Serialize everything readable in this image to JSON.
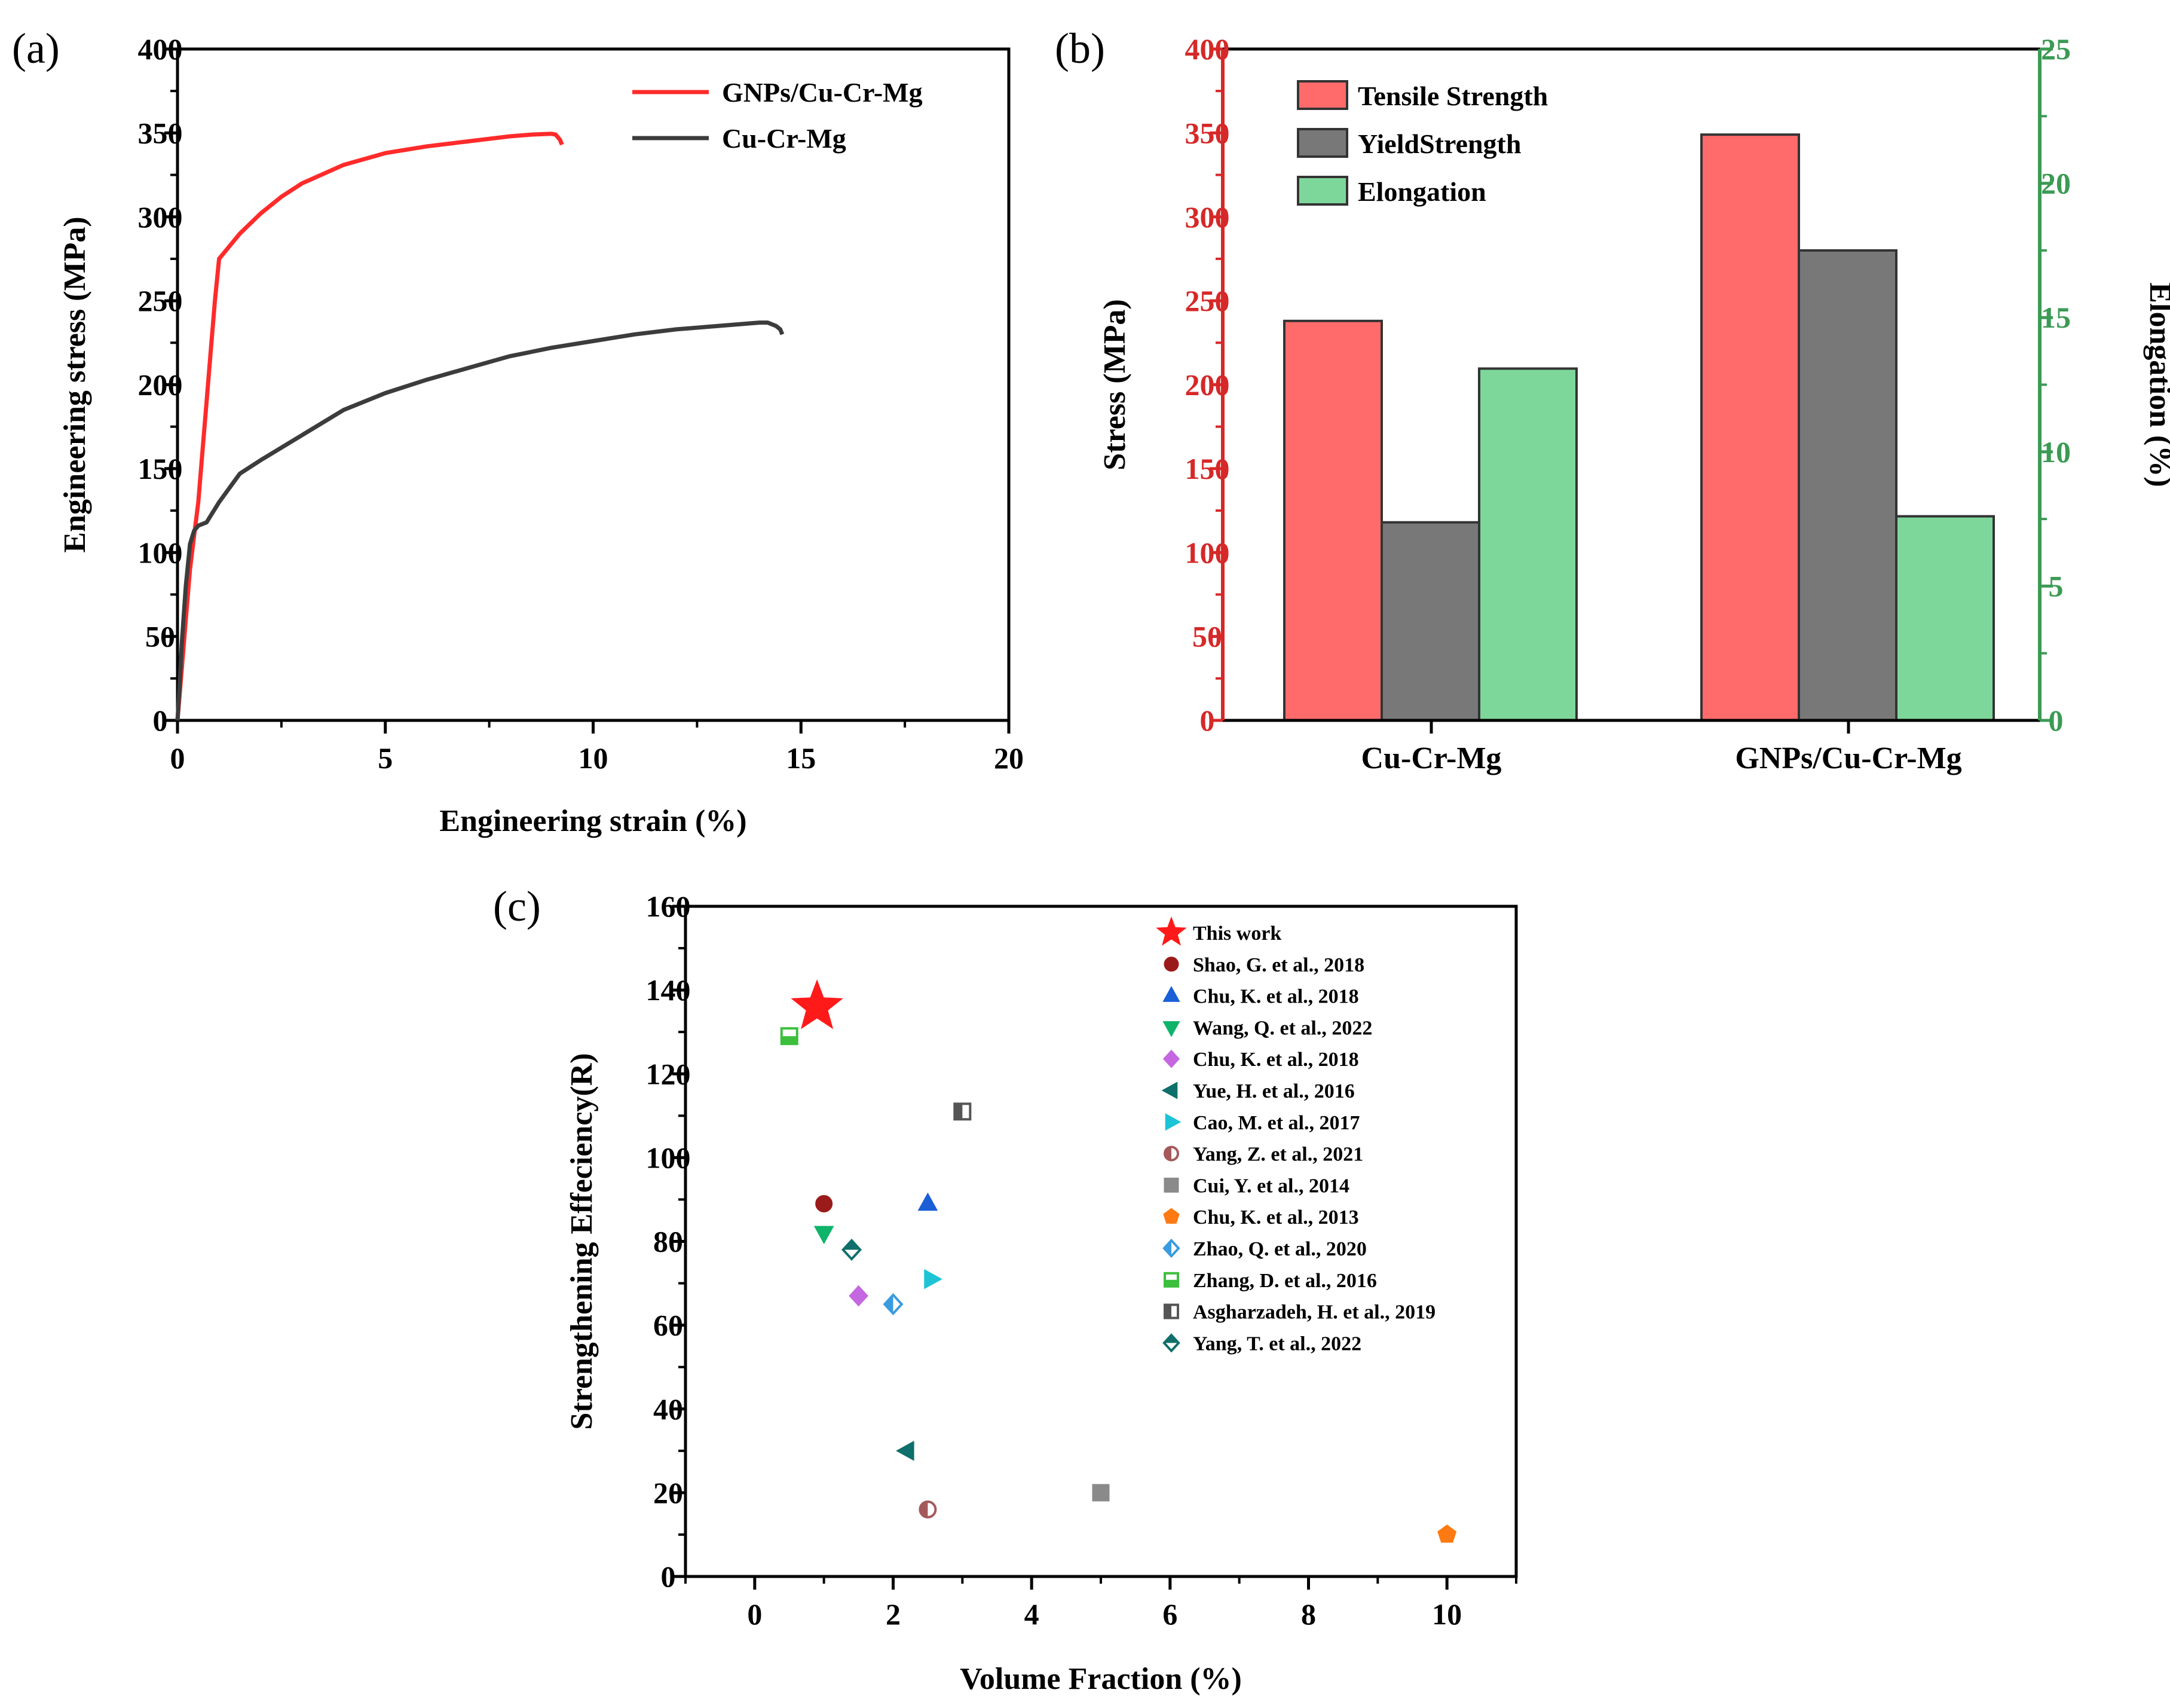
{
  "colors": {
    "gnps": "#ff2b2b",
    "cucrmg": "#3c3c3c",
    "tensile": "#ff6b6b",
    "yield": "#787878",
    "elong": "#7ed79a",
    "stress_axis": "#d62828",
    "elong_axis": "#3c9a54"
  },
  "chart_data": [
    {
      "type": "line",
      "panel_label": "(a)",
      "xlabel": "Engineering strain (%)",
      "ylabel": "Engineering stress (MPa)",
      "xlim": [
        0,
        20
      ],
      "ylim": [
        0,
        400
      ],
      "xticks": [
        0,
        5,
        10,
        15,
        20
      ],
      "yticks": [
        0,
        50,
        100,
        150,
        200,
        250,
        300,
        350,
        400
      ],
      "legend_position": "top-right",
      "series": [
        {
          "name": "GNPs/Cu-Cr-Mg",
          "color": "#ff2b2b",
          "x": [
            0,
            0.1,
            0.2,
            0.3,
            0.4,
            0.5,
            0.6,
            0.7,
            0.8,
            0.9,
            1.0,
            1.5,
            2,
            2.5,
            3,
            4,
            5,
            6,
            7,
            8,
            8.5,
            9.0,
            9.1,
            9.2,
            9.25
          ],
          "y": [
            0,
            30,
            60,
            90,
            110,
            130,
            160,
            190,
            220,
            250,
            275,
            290,
            302,
            312,
            320,
            331,
            338,
            342,
            345,
            348,
            349,
            349.5,
            349,
            346,
            343
          ]
        },
        {
          "name": "Cu-Cr-Mg",
          "color": "#3c3c3c",
          "x": [
            0,
            0.05,
            0.1,
            0.2,
            0.3,
            0.4,
            0.5,
            0.7,
            1.0,
            1.5,
            2,
            3,
            4,
            5,
            6,
            7,
            8,
            9,
            10,
            11,
            12,
            13,
            14,
            14.2,
            14.4,
            14.5,
            14.55
          ],
          "y": [
            0,
            20,
            45,
            80,
            105,
            113,
            116,
            118,
            130,
            147,
            155,
            170,
            185,
            195,
            203,
            210,
            217,
            222,
            226,
            230,
            233,
            235,
            237,
            237,
            235,
            233,
            230
          ]
        }
      ]
    },
    {
      "type": "bar",
      "panel_label": "(b)",
      "categories": [
        "Cu-Cr-Mg",
        "GNPs/Cu-Cr-Mg"
      ],
      "ylabel": "Stress (MPa)",
      "y2label": "Elongation (%)",
      "ylim": [
        0,
        400
      ],
      "y2lim": [
        0,
        25
      ],
      "yticks": [
        0,
        50,
        100,
        150,
        200,
        250,
        300,
        350,
        400
      ],
      "y2ticks": [
        0,
        5,
        10,
        15,
        20,
        25
      ],
      "legend_position": "top-left",
      "series": [
        {
          "name": "Tensile Strength",
          "axis": "left",
          "color": "#ff6b6b",
          "values": [
            238,
            349
          ]
        },
        {
          "name": "YieldStrength",
          "axis": "left",
          "color": "#787878",
          "values": [
            118,
            280
          ]
        },
        {
          "name": "Elongation",
          "axis": "right",
          "color": "#7ed79a",
          "values": [
            13.1,
            7.6
          ]
        }
      ]
    },
    {
      "type": "scatter",
      "panel_label": "(c)",
      "xlabel": "Volume Fraction (%)",
      "ylabel": "Strengthening Effeciency(R)",
      "xlim": [
        -1,
        11
      ],
      "ylim": [
        0,
        160
      ],
      "xticks": [
        0,
        2,
        4,
        6,
        8,
        10
      ],
      "yticks": [
        0,
        20,
        40,
        60,
        80,
        100,
        120,
        140,
        160
      ],
      "legend_position": "top-right",
      "series": [
        {
          "name": "This work",
          "marker": "star",
          "color": "#ff1a1a",
          "x": [
            0.9
          ],
          "y": [
            136
          ]
        },
        {
          "name": "Shao, G. et al., 2018",
          "marker": "circle",
          "color": "#9b1b1b",
          "x": [
            1.0
          ],
          "y": [
            89
          ]
        },
        {
          "name": "Chu, K. et al., 2018",
          "marker": "triangle-up",
          "color": "#1a5fd6",
          "x": [
            2.5
          ],
          "y": [
            89
          ]
        },
        {
          "name": "Wang, Q. et al., 2022",
          "marker": "triangle-down",
          "color": "#10b36a",
          "x": [
            1.0
          ],
          "y": [
            82
          ]
        },
        {
          "name": "Chu, K. et al., 2018",
          "marker": "diamond",
          "color": "#c467e0",
          "x": [
            1.5
          ],
          "y": [
            67
          ]
        },
        {
          "name": "Yue, H. et al., 2016",
          "marker": "triangle-left",
          "color": "#0f6f6a",
          "x": [
            2.2
          ],
          "y": [
            30
          ]
        },
        {
          "name": "Cao, M. et al., 2017",
          "marker": "triangle-right",
          "color": "#1cc4d6",
          "x": [
            2.55
          ],
          "y": [
            71
          ]
        },
        {
          "name": "Yang, Z. et al., 2021",
          "marker": "half-circle",
          "color": "#a45a5a",
          "x": [
            2.5
          ],
          "y": [
            16
          ]
        },
        {
          "name": "Cui, Y. et al., 2014",
          "marker": "square",
          "color": "#8a8a8a",
          "x": [
            5.0
          ],
          "y": [
            20
          ]
        },
        {
          "name": "Chu, K. et al., 2013",
          "marker": "pentagon",
          "color": "#ff7a12",
          "x": [
            10.0
          ],
          "y": [
            10
          ]
        },
        {
          "name": "Zhao, Q. et al., 2020",
          "marker": "half-diamond",
          "color": "#3a9be0",
          "x": [
            2.0
          ],
          "y": [
            65
          ]
        },
        {
          "name": "Zhang, D. et al., 2016",
          "marker": "half-square-bottom",
          "color": "#3cbf3c",
          "x": [
            0.5
          ],
          "y": [
            129
          ]
        },
        {
          "name": "Asgharzadeh, H. et al., 2019",
          "marker": "half-square-left",
          "color": "#555555",
          "x": [
            3.0
          ],
          "y": [
            111
          ]
        },
        {
          "name": "Yang, T. et al., 2022",
          "marker": "half-diamond-top",
          "color": "#0f6f6a",
          "x": [
            1.4
          ],
          "y": [
            78
          ]
        }
      ]
    }
  ]
}
